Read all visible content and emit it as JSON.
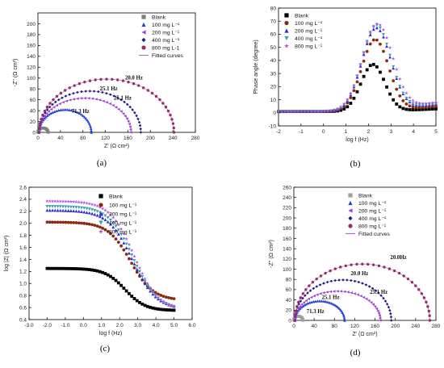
{
  "panels": [
    {
      "id": "a",
      "caption": "(a)",
      "type": "scatter",
      "xlabel": "Z' (Ω cm²)",
      "ylabel": "-Z'' (Ω cm²)",
      "xlim": [
        0,
        280
      ],
      "ylim": [
        0,
        220
      ],
      "xticks": [
        0,
        40,
        80,
        120,
        160,
        200,
        240,
        280
      ],
      "yticks": [
        0,
        20,
        40,
        60,
        80,
        100,
        120,
        140,
        160,
        180,
        200
      ],
      "legend": [
        {
          "label": "Blank",
          "marker": "square",
          "color": "#808080"
        },
        {
          "label": "100 mg L⁻¹",
          "marker": "triangle",
          "color": "#1f3fdf"
        },
        {
          "label": "200 mg L⁻¹",
          "marker": "triangle-left",
          "color": "#9d3fd8"
        },
        {
          "label": "400 mg L⁻¹",
          "marker": "diamond",
          "color": "#1a1a7a"
        },
        {
          "label": "800 mg L-1",
          "marker": "circle",
          "color": "#9b2a6a"
        },
        {
          "label": "Fitted curves",
          "marker": "line",
          "color": "#b070c0"
        }
      ],
      "annotations": [
        {
          "text": "20.0 Hz",
          "x": 155,
          "y": 97
        },
        {
          "text": "25.1 Hz",
          "x": 110,
          "y": 77
        },
        {
          "text": "25.1 Hz",
          "x": 135,
          "y": 60
        },
        {
          "text": "71.3 Hz",
          "x": 60,
          "y": 36
        }
      ]
    },
    {
      "id": "b",
      "caption": "(b)",
      "type": "scatter",
      "xlabel": "log f (Hz)",
      "ylabel": "Phase angle (degree)",
      "xlim": [
        -2,
        5
      ],
      "ylim": [
        -10,
        80
      ],
      "xticks": [
        -2,
        -1,
        0,
        1,
        2,
        3,
        4,
        5
      ],
      "yticks": [
        -10,
        0,
        10,
        20,
        30,
        40,
        50,
        60,
        70,
        80
      ],
      "legend": [
        {
          "label": "Blank",
          "marker": "square",
          "color": "#000000"
        },
        {
          "label": "100 mg L⁻¹",
          "marker": "circle",
          "color": "#8b2a10"
        },
        {
          "label": "200 mg L⁻¹",
          "marker": "triangle",
          "color": "#2a2adf"
        },
        {
          "label": "400 mg L⁻¹",
          "marker": "triangle-down",
          "color": "#3aa0a8"
        },
        {
          "label": "800 mg L⁻¹",
          "marker": "star",
          "color": "#b050e0"
        }
      ]
    },
    {
      "id": "c",
      "caption": "(c)",
      "type": "scatter",
      "xlabel": "log f (Hz)",
      "ylabel": "log |Z| (Ω cm²)",
      "xlim": [
        -3,
        6
      ],
      "ylim": [
        0.4,
        2.6
      ],
      "xticks": [
        -3,
        -2,
        -1,
        0,
        1,
        2,
        3,
        4,
        5,
        6
      ],
      "yticks": [
        0.4,
        0.6,
        0.8,
        1.0,
        1.2,
        1.4,
        1.6,
        1.8,
        2.0,
        2.2,
        2.4,
        2.6
      ],
      "legend": [
        {
          "label": "Blank",
          "marker": "square",
          "color": "#000000"
        },
        {
          "label": "100 mg L⁻¹",
          "marker": "circle",
          "color": "#8b2a10"
        },
        {
          "label": "200 mg L⁻¹",
          "marker": "triangle",
          "color": "#2a2adf"
        },
        {
          "label": "400 mg L⁻¹",
          "marker": "triangle-down",
          "color": "#3aa0a8"
        },
        {
          "label": "800 mg L⁻¹",
          "marker": "star",
          "color": "#b050e0"
        }
      ]
    },
    {
      "id": "d",
      "caption": "(d)",
      "type": "scatter",
      "xlabel": "Z' (Ω cm²)",
      "ylabel": "-Z'' (Ω cm²)",
      "xlim": [
        0,
        280
      ],
      "ylim": [
        0,
        260
      ],
      "xticks": [
        0,
        40,
        80,
        120,
        160,
        200,
        240,
        280
      ],
      "yticks": [
        0,
        20,
        40,
        60,
        80,
        100,
        120,
        140,
        160,
        180,
        200,
        220,
        240,
        260
      ],
      "legend": [
        {
          "label": "Blank",
          "marker": "square",
          "color": "#a0a0a0"
        },
        {
          "label": "100 mg L⁻¹",
          "marker": "triangle",
          "color": "#1f3fdf"
        },
        {
          "label": "200 mg L⁻¹",
          "marker": "triangle-left",
          "color": "#9d3fd8"
        },
        {
          "label": "400 mg L⁻¹",
          "marker": "diamond",
          "color": "#1a1a7a"
        },
        {
          "label": "800 mg L⁻¹",
          "marker": "circle",
          "color": "#9b2a6a"
        },
        {
          "label": "Fitted curves",
          "marker": "line",
          "color": "#b070c0"
        }
      ],
      "annotations": [
        {
          "text": "20.0Hz",
          "x": 190,
          "y": 120
        },
        {
          "text": "20.0 Hz",
          "x": 112,
          "y": 88
        },
        {
          "text": "25.1 Hz",
          "x": 150,
          "y": 52
        },
        {
          "text": "25.1 Hz",
          "x": 55,
          "y": 42
        },
        {
          "text": "71.3 Hz",
          "x": 25,
          "y": 14
        }
      ]
    }
  ],
  "chart_data": [
    {
      "panel": "a",
      "type": "scatter",
      "shape": "semicircle",
      "series": [
        {
          "name": "Blank",
          "x_start": 0,
          "x_end": 18,
          "peak": 8
        },
        {
          "name": "100 mg L⁻¹",
          "x_start": 2,
          "x_end": 95,
          "peak": 42
        },
        {
          "name": "200 mg L⁻¹",
          "x_start": 2,
          "x_end": 165,
          "peak": 63
        },
        {
          "name": "400 mg L⁻¹",
          "x_start": 2,
          "x_end": 183,
          "peak": 76
        },
        {
          "name": "800 mg L-1",
          "x_start": 2,
          "x_end": 242,
          "peak": 98
        }
      ]
    },
    {
      "panel": "b",
      "type": "scatter",
      "shape": "peak",
      "series": [
        {
          "name": "Blank",
          "base": 1,
          "peak_x": 2.2,
          "peak_y": 37,
          "width": 0.75,
          "end": 3
        },
        {
          "name": "100 mg L⁻¹",
          "base": 1,
          "peak_x": 2.3,
          "peak_y": 56,
          "width": 0.85,
          "end": 5
        },
        {
          "name": "200 mg L⁻¹",
          "base": 1,
          "peak_x": 2.35,
          "peak_y": 65,
          "width": 0.9,
          "end": 7
        },
        {
          "name": "400 mg L⁻¹",
          "base": 1,
          "peak_x": 2.35,
          "peak_y": 67,
          "width": 0.9,
          "end": 7
        },
        {
          "name": "800 mg L⁻¹",
          "base": 1,
          "peak_x": 2.4,
          "peak_y": 68,
          "width": 0.95,
          "end": 8
        }
      ]
    },
    {
      "panel": "c",
      "type": "scatter",
      "shape": "sigmoid",
      "series": [
        {
          "name": "Blank",
          "low_f": 1.25,
          "high_f": 0.55,
          "mid": 2.3,
          "steep": 1.8
        },
        {
          "name": "100 mg L⁻¹",
          "low_f": 2.02,
          "high_f": 0.72,
          "mid": 2.6,
          "steep": 1.6
        },
        {
          "name": "200 mg L⁻¹",
          "low_f": 2.22,
          "high_f": 0.57,
          "mid": 2.7,
          "steep": 1.5
        },
        {
          "name": "400 mg L⁻¹",
          "low_f": 2.28,
          "high_f": 0.56,
          "mid": 2.75,
          "steep": 1.5
        },
        {
          "name": "800 mg L⁻¹",
          "low_f": 2.37,
          "high_f": 0.55,
          "mid": 2.8,
          "steep": 1.5
        }
      ]
    },
    {
      "panel": "d",
      "type": "scatter",
      "shape": "semicircle",
      "series": [
        {
          "name": "Blank",
          "x_start": 0,
          "x_end": 18,
          "peak": 8
        },
        {
          "name": "100 mg L⁻¹",
          "x_start": 2,
          "x_end": 100,
          "peak": 38
        },
        {
          "name": "200 mg L⁻¹",
          "x_start": 2,
          "x_end": 170,
          "peak": 57
        },
        {
          "name": "400 mg L⁻¹",
          "x_start": 2,
          "x_end": 192,
          "peak": 79
        },
        {
          "name": "800 mg L⁻¹",
          "x_start": 2,
          "x_end": 268,
          "peak": 110
        }
      ]
    }
  ]
}
